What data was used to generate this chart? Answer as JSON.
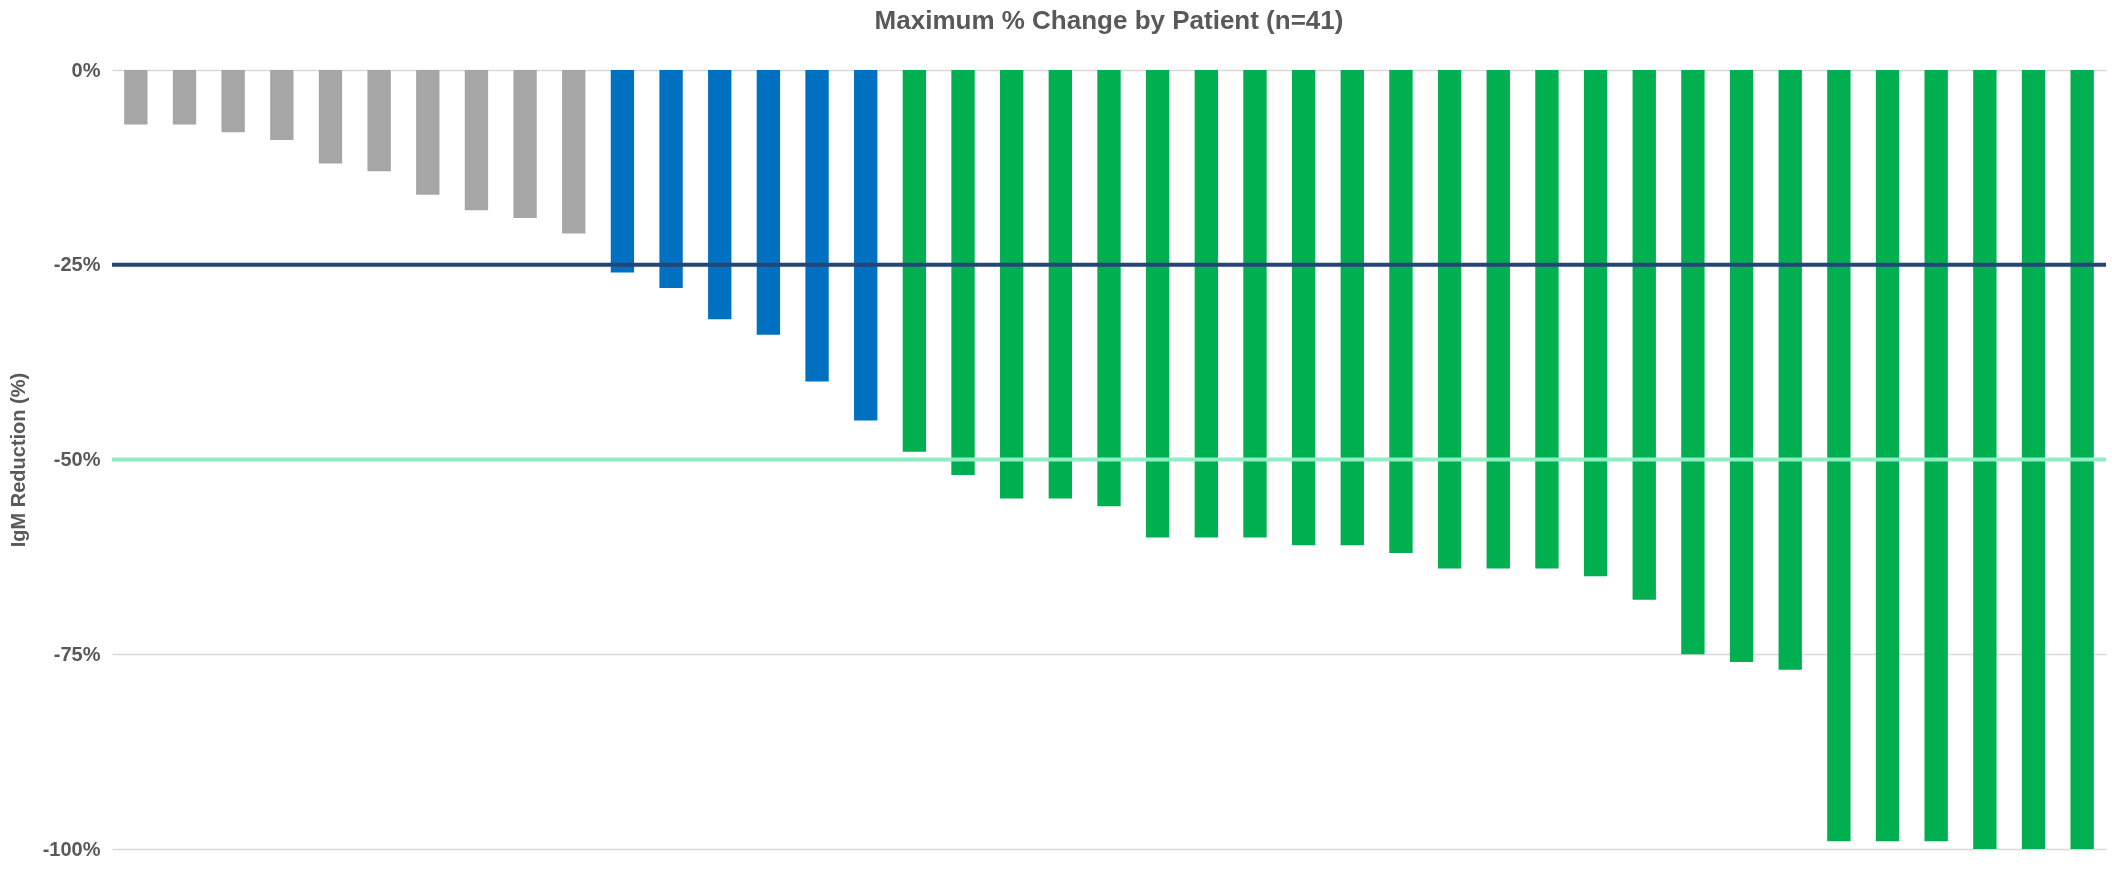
{
  "chart_data": {
    "type": "bar",
    "title": "Maximum % Change by Patient (n=41)",
    "ylabel": "IgM Reduction (%)",
    "categories": [
      null,
      null,
      null,
      null,
      null,
      null,
      null,
      null,
      null,
      null,
      null,
      null,
      null,
      null,
      null,
      null,
      null,
      null,
      null,
      null,
      null,
      null,
      null,
      null,
      null,
      null,
      null,
      null,
      null,
      null,
      null,
      null,
      null,
      null,
      null,
      null,
      null,
      null,
      null,
      null,
      null
    ],
    "values": [
      -7,
      -7,
      -8,
      -9,
      -12,
      -13,
      -16,
      -18,
      -19,
      -21,
      -26,
      -28,
      -32,
      -34,
      -40,
      -45,
      -49,
      -52,
      -55,
      -55,
      -56,
      -60,
      -60,
      -60,
      -61,
      -61,
      -62,
      -64,
      -64,
      -64,
      -65,
      -68,
      -75,
      -76,
      -77,
      -99,
      -99,
      -99,
      -100,
      -100,
      -100
    ],
    "colors": [
      "#a6a6a6",
      "#a6a6a6",
      "#a6a6a6",
      "#a6a6a6",
      "#a6a6a6",
      "#a6a6a6",
      "#a6a6a6",
      "#a6a6a6",
      "#a6a6a6",
      "#a6a6a6",
      "#0070c0",
      "#0070c0",
      "#0070c0",
      "#0070c0",
      "#0070c0",
      "#0070c0",
      "#00b050",
      "#00b050",
      "#00b050",
      "#00b050",
      "#00b050",
      "#00b050",
      "#00b050",
      "#00b050",
      "#00b050",
      "#00b050",
      "#00b050",
      "#00b050",
      "#00b050",
      "#00b050",
      "#00b050",
      "#00b050",
      "#00b050",
      "#00b050",
      "#00b050",
      "#00b050",
      "#00b050",
      "#00b050",
      "#00b050",
      "#00b050",
      "#00b050"
    ],
    "ylim": [
      -100,
      0
    ],
    "yticks": [
      {
        "value": -100,
        "label": "-100%"
      },
      {
        "value": -75,
        "label": "-75%"
      },
      {
        "value": -50,
        "label": "-50%"
      },
      {
        "value": -25,
        "label": "-25%"
      },
      {
        "value": 0,
        "label": "0%"
      }
    ],
    "grid": "y",
    "ref_lines": [
      {
        "axis": "y",
        "value": -25,
        "color": "#264478"
      },
      {
        "axis": "y",
        "value": -50,
        "color": "#8eeec4"
      }
    ]
  }
}
